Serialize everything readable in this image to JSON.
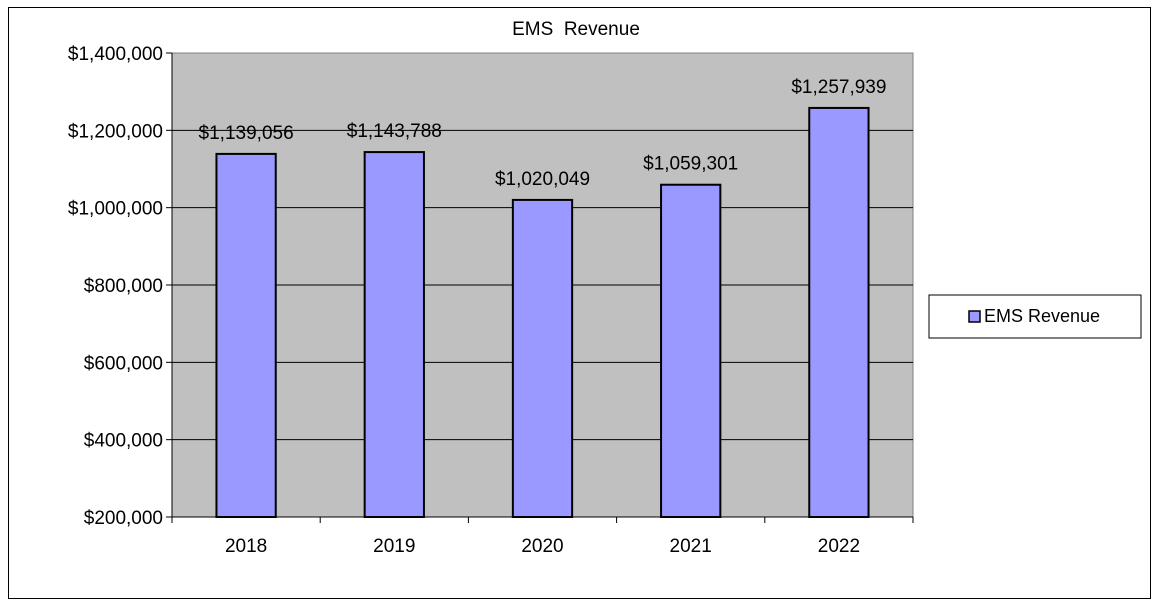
{
  "chart_data": {
    "type": "bar",
    "title": "EMS  Revenue",
    "categories": [
      "2018",
      "2019",
      "2020",
      "2021",
      "2022"
    ],
    "series": [
      {
        "name": "EMS Revenue",
        "values": [
          1139056,
          1143788,
          1020049,
          1059301,
          1257939
        ],
        "labels": [
          "$1,139,056",
          "$1,143,788",
          "$1,020,049",
          "$1,059,301",
          "$1,257,939"
        ]
      }
    ],
    "y_ticks": [
      "$200,000",
      "$400,000",
      "$600,000",
      "$800,000",
      "$1,000,000",
      "$1,200,000",
      "$1,400,000"
    ],
    "ylim": [
      200000,
      1400000
    ],
    "ytick_values": [
      200000,
      400000,
      600000,
      800000,
      1000000,
      1200000,
      1400000
    ],
    "xlabel": "",
    "ylabel": "",
    "grid": true,
    "legend_position": "right",
    "colors": {
      "plot_background": "#c0c0c0",
      "bar_fill": "#9999ff",
      "bar_stroke": "#000000",
      "gridline": "#000000"
    }
  }
}
